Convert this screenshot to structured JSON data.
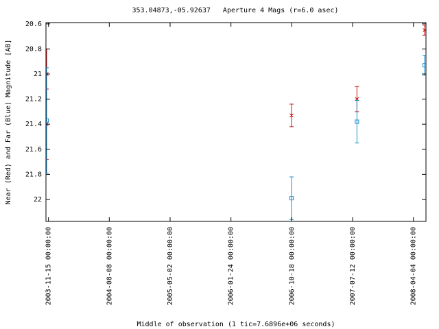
{
  "chart_data": {
    "type": "errorbar-scatter",
    "title": "353.04873,-05.92637   Aperture 4 Mags (r=6.0 asec)",
    "y_label": "Near (Red) and Far (Blue) Magnitude [AB]",
    "x_label": "Middle of observation (1 tic=7.6896e+06 seconds)",
    "xlim": [
      "2003-11-04",
      "2008-05-29"
    ],
    "xticks": [
      {
        "value": "2003-11-15",
        "label": "2003-11-15 00:00:00"
      },
      {
        "value": "2004-08-08",
        "label": "2004-08-08 00:00:00"
      },
      {
        "value": "2005-05-02",
        "label": "2005-05-02 00:00:00"
      },
      {
        "value": "2006-01-24",
        "label": "2006-01-24 00:00:00"
      },
      {
        "value": "2006-10-18",
        "label": "2006-10-18 00:00:00"
      },
      {
        "value": "2007-07-12",
        "label": "2007-07-12 00:00:00"
      },
      {
        "value": "2008-04-04",
        "label": "2008-04-04 00:00:00"
      }
    ],
    "ylim": [
      20.59,
      22.175
    ],
    "y_reversed": true,
    "yticks": [
      20.6,
      20.8,
      21,
      21.2,
      21.4,
      21.6,
      21.8,
      22
    ],
    "series": [
      {
        "color": "#cc1111",
        "marker": "cross",
        "x": [
          "2003-11-07",
          "2003-11-07",
          "2006-10-17",
          "2007-07-31",
          "2008-05-23"
        ],
        "values": [
          21.0,
          21.4,
          21.33,
          21.2,
          20.65
        ],
        "errors": [
          0.2,
          0.28,
          0.09,
          0.1,
          0.04
        ]
      },
      {
        "color": "#1a8ccc",
        "marker": "square",
        "x": [
          "2003-11-07",
          "2006-10-17",
          "2007-07-31",
          "2008-05-23"
        ],
        "values": [
          21.37,
          21.99,
          21.38,
          20.93
        ],
        "errors": [
          0.42,
          0.17,
          0.17,
          0.08
        ]
      }
    ]
  }
}
